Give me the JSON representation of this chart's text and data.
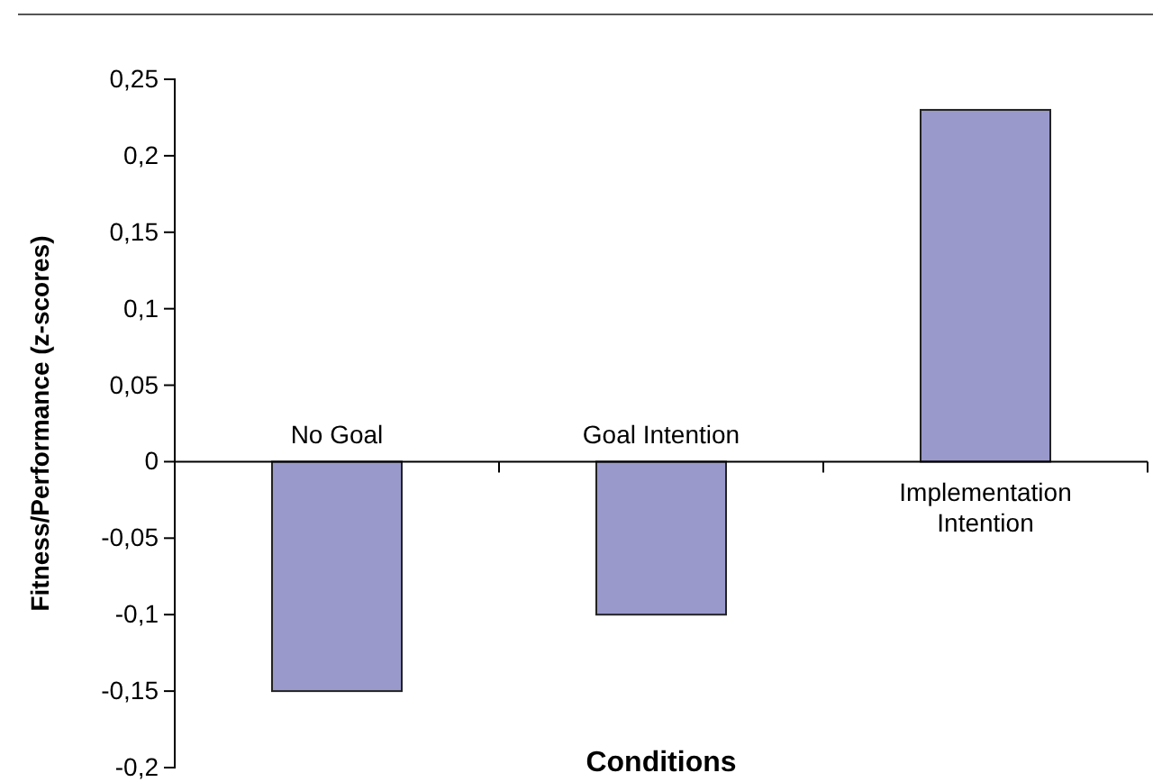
{
  "chart_data": {
    "type": "bar",
    "xlabel": "Conditions",
    "ylabel": "Fitness/Performance (z-scores)",
    "categories": [
      "No Goal",
      "Goal Intention",
      "Implementation Intention"
    ],
    "values": [
      -0.15,
      -0.1,
      0.23
    ],
    "color": "#9999cc",
    "ylim": [
      -0.2,
      0.25
    ],
    "yticks": [
      {
        "value": -0.2,
        "label": "-0,2"
      },
      {
        "value": -0.15,
        "label": "-0,15"
      },
      {
        "value": -0.1,
        "label": "-0,1"
      },
      {
        "value": -0.05,
        "label": "-0,05"
      },
      0,
      {
        "value": 0.05,
        "label": "0,05"
      },
      {
        "value": 0.1,
        "label": "0,1"
      },
      {
        "value": 0.15,
        "label": "0,15"
      },
      {
        "value": 0.2,
        "label": "0,2"
      },
      {
        "value": 0.25,
        "label": "0,25"
      }
    ],
    "grid": false
  }
}
